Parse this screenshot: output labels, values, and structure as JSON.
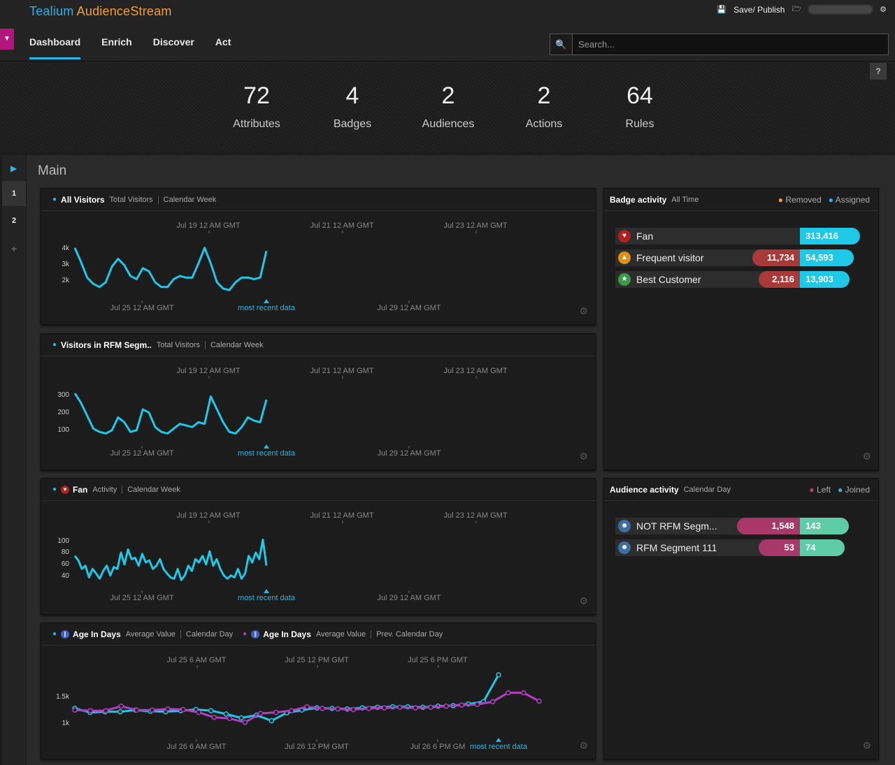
{
  "app": {
    "brand_part1": "Tealium",
    "brand_part2": "AudienceStream",
    "save_label": "Save/ Publish"
  },
  "nav": {
    "tabs": [
      "Dashboard",
      "Enrich",
      "Discover",
      "Act"
    ],
    "active": "Dashboard"
  },
  "search": {
    "placeholder": "Search..."
  },
  "help_label": "?",
  "stats": [
    {
      "value": "72",
      "label": "Attributes"
    },
    {
      "value": "4",
      "label": "Badges"
    },
    {
      "value": "2",
      "label": "Audiences"
    },
    {
      "value": "2",
      "label": "Actions"
    },
    {
      "value": "64",
      "label": "Rules"
    }
  ],
  "left_rail": {
    "pages": [
      "1",
      "2"
    ],
    "add": "+"
  },
  "main_title": "Main",
  "colors": {
    "accent": "#2ab5e8",
    "brand_orange": "#f0a030",
    "purple": "#b040c0",
    "assigned": "#1fc8e6",
    "removed": "#a83a3a",
    "left": "#a83868",
    "joined": "#5fcca8"
  },
  "panels": {
    "all_visitors": {
      "title": "All Visitors",
      "metric": "Total Visitors",
      "period": "Calendar Week"
    },
    "rfm_visitors": {
      "title": "Visitors in RFM Segm..",
      "metric": "Total Visitors",
      "period": "Calendar Week"
    },
    "fan": {
      "title": "Fan",
      "metric": "Activity",
      "period": "Calendar Week"
    },
    "age": {
      "title_a": "Age In Days",
      "metric_a": "Average Value",
      "period_a": "Calendar Day",
      "title_b": "Age In Days",
      "metric_b": "Average Value",
      "period_b": "Prev. Calendar Day"
    },
    "badge_activity": {
      "title": "Badge activity",
      "period": "All Time",
      "legend_removed": "Removed",
      "legend_assigned": "Assigned",
      "rows": [
        {
          "name": "Fan",
          "removed": "",
          "assigned": "313,416",
          "icon": "heart-icon"
        },
        {
          "name": "Frequent visitor",
          "removed": "11,734",
          "assigned": "54,593",
          "icon": "flame-icon"
        },
        {
          "name": "Best Customer",
          "removed": "2,116",
          "assigned": "13,903",
          "icon": "trophy-icon"
        }
      ]
    },
    "audience_activity": {
      "title": "Audience activity",
      "period": "Calendar Day",
      "legend_left": "Left",
      "legend_joined": "Joined",
      "rows": [
        {
          "name": "NOT RFM Segm...",
          "left": "1,548",
          "joined": "143",
          "icon": "people-icon"
        },
        {
          "name": "RFM Segment 111",
          "left": "53",
          "joined": "74",
          "icon": "people-icon"
        }
      ]
    }
  },
  "chart_data": [
    {
      "type": "line",
      "title": "All Visitors",
      "top_axis_ticks": [
        "Jul 19 12 AM GMT",
        "Jul 21 12 AM GMT",
        "Jul 23 12 AM GMT"
      ],
      "bottom_axis_ticks": [
        "Jul 25 12 AM GMT",
        "Jul 29 12 AM GMT"
      ],
      "marker_label": "most recent data",
      "yticks": [
        "4k",
        "3k",
        "2k"
      ],
      "y_range": [
        1000,
        4300
      ],
      "series": [
        {
          "values": [
            4000,
            3100,
            2100,
            1700,
            1500,
            1800,
            2800,
            3300,
            2900,
            2200,
            2000,
            2700,
            2500,
            1800,
            1500,
            1500,
            2000,
            2200,
            2100,
            2100,
            3000,
            4000,
            3000,
            1800,
            1400,
            1300,
            1800,
            2100,
            2100,
            2000,
            2100,
            3800
          ]
        }
      ]
    },
    {
      "type": "line",
      "title": "Visitors in RFM Segm..",
      "top_axis_ticks": [
        "Jul 19 12 AM GMT",
        "Jul 21 12 AM GMT",
        "Jul 23 12 AM GMT"
      ],
      "bottom_axis_ticks": [
        "Jul 25 12 AM GMT",
        "Jul 29 12 AM GMT"
      ],
      "marker_label": "most recent data",
      "yticks": [
        "300",
        "200",
        "100"
      ],
      "y_range": [
        0,
        330
      ],
      "series": [
        {
          "values": [
            300,
            240,
            160,
            80,
            60,
            50,
            70,
            150,
            120,
            60,
            70,
            200,
            180,
            90,
            60,
            50,
            80,
            110,
            100,
            90,
            120,
            110,
            280,
            200,
            120,
            60,
            50,
            90,
            150,
            130,
            120,
            260
          ]
        }
      ]
    },
    {
      "type": "line",
      "title": "Fan",
      "top_axis_ticks": [
        "Jul 19 12 AM GMT",
        "Jul 21 12 AM GMT",
        "Jul 23 12 AM GMT"
      ],
      "bottom_axis_ticks": [
        "Jul 25 12 AM GMT",
        "Jul 29 12 AM GMT"
      ],
      "marker_label": "most recent data",
      "yticks": [
        "100",
        "80",
        "60",
        "40"
      ],
      "y_range": [
        20,
        110
      ],
      "series": [
        {
          "values": [
            75,
            68,
            55,
            60,
            42,
            55,
            48,
            40,
            52,
            60,
            45,
            58,
            55,
            80,
            62,
            85,
            70,
            72,
            60,
            78,
            65,
            68,
            55,
            60,
            70,
            55,
            48,
            42,
            40,
            55,
            38,
            45,
            60,
            52,
            70,
            65,
            75,
            62,
            82,
            60,
            70,
            55,
            45,
            40,
            45,
            42,
            55,
            40,
            48,
            75,
            65,
            80,
            70,
            100,
            60
          ]
        }
      ]
    },
    {
      "type": "line",
      "title": "Age In Days",
      "top_axis_ticks": [
        "Jul 25 6 AM GMT",
        "Jul 25 12 PM GMT",
        "Jul 25 6 PM GMT"
      ],
      "bottom_axis_ticks": [
        "Jul 26 6 AM GMT",
        "Jul 26 12 PM GMT",
        "Jul 26 6 PM GM"
      ],
      "marker_label": "most recent data",
      "yticks": [
        "1.5k",
        "1k"
      ],
      "y_range": [
        700,
        1900
      ],
      "series": [
        {
          "name": "Age In Days",
          "values": [
            1200,
            1130,
            1140,
            1140,
            1170,
            1150,
            1140,
            1160,
            1180,
            1160,
            1100,
            1030,
            1080,
            980,
            1120,
            1170,
            1210,
            1200,
            1190,
            1210,
            1220,
            1230,
            1230,
            1220,
            1240,
            1250,
            1280,
            1320,
            1800
          ]
        },
        {
          "name": "Age In Days",
          "values": [
            1170,
            1160,
            1160,
            1240,
            1170,
            1170,
            1190,
            1180,
            1130,
            1040,
            1020,
            950,
            1110,
            1130,
            1160,
            1230,
            1200,
            1190,
            1180,
            1200,
            1210,
            1220,
            1210,
            1220,
            1240,
            1260,
            1270,
            1320,
            1480,
            1480,
            1330
          ]
        }
      ]
    }
  ]
}
